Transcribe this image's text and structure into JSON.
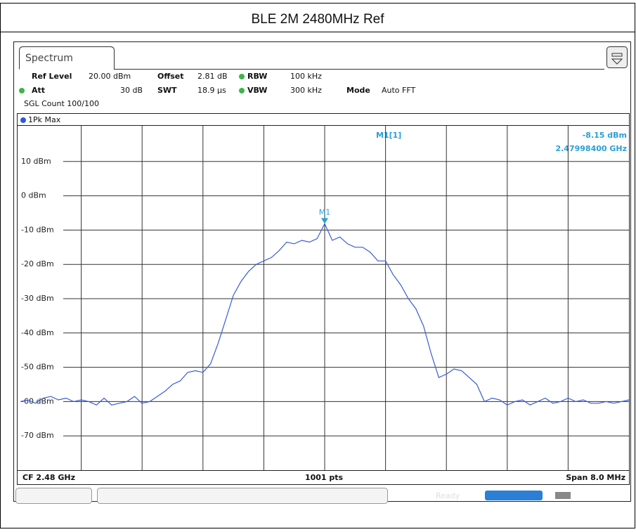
{
  "title": "BLE 2M 2480MHz Ref",
  "window": {
    "tab": "Spectrum"
  },
  "settings": {
    "ref_level_label": "Ref Level",
    "ref_level": "20.00 dBm",
    "offset_label": "Offset",
    "offset": "2.81 dB",
    "rbw_label": "RBW",
    "rbw": "100 kHz",
    "att_label": "Att",
    "att": "30 dB",
    "swt_label": "SWT",
    "swt": "18.9 µs",
    "vbw_label": "VBW",
    "vbw": "300 kHz",
    "mode_label": "Mode",
    "mode": "Auto FFT",
    "count": "SGL Count 100/100"
  },
  "status": {
    "ready": "Ready"
  },
  "chart_data": {
    "type": "line",
    "trace_label": "1Pk Max",
    "color": "#3a5bd8",
    "grid": true,
    "ylim": [
      -80,
      20
    ],
    "yticks": [
      {
        "value": 10,
        "label": "10 dBm"
      },
      {
        "value": 0,
        "label": "0 dBm"
      },
      {
        "value": -10,
        "label": "-10 dBm"
      },
      {
        "value": -20,
        "label": "-20 dBm"
      },
      {
        "value": -30,
        "label": "-30 dBm"
      },
      {
        "value": -40,
        "label": "-40 dBm"
      },
      {
        "value": -50,
        "label": "-50 dBm"
      },
      {
        "value": -60,
        "label": "-60 dBm"
      },
      {
        "value": -70,
        "label": "-70 dBm"
      }
    ],
    "values": [
      -60,
      -59.5,
      -60.5,
      -59,
      -58.5,
      -59.5,
      -59,
      -60,
      -59.5,
      -60,
      -61,
      -59,
      -61,
      -60.5,
      -60,
      -58.5,
      -60.5,
      -60,
      -58.5,
      -57,
      -55,
      -54,
      -51.5,
      -51,
      -51.5,
      -49,
      -43,
      -36,
      -29,
      -25,
      -22,
      -20,
      -19,
      -18,
      -16,
      -13.5,
      -14,
      -13,
      -13.5,
      -12.5,
      -8.15,
      -13,
      -12,
      -14,
      -15,
      -15,
      -16.5,
      -19,
      -19,
      -23,
      -26,
      -30,
      -33,
      -38,
      -46,
      -53,
      -52,
      -50.5,
      -51,
      -53,
      -55,
      -60,
      -59,
      -59.5,
      -61,
      -60,
      -59.5,
      -61,
      -60,
      -59,
      -60.5,
      -60,
      -59,
      -60,
      -59.5,
      -60.5,
      -60.5,
      -60,
      -60.5,
      -60,
      -59.5
    ],
    "marker": {
      "name": "M1",
      "label": "M1[1]",
      "value": -8.15,
      "value_label": "-8.15 dBm",
      "frequency": "2.47998400 GHz"
    },
    "footer": {
      "center_frequency": "CF 2.48 GHz",
      "points": "1001 pts",
      "span": "Span 8.0 MHz"
    }
  }
}
